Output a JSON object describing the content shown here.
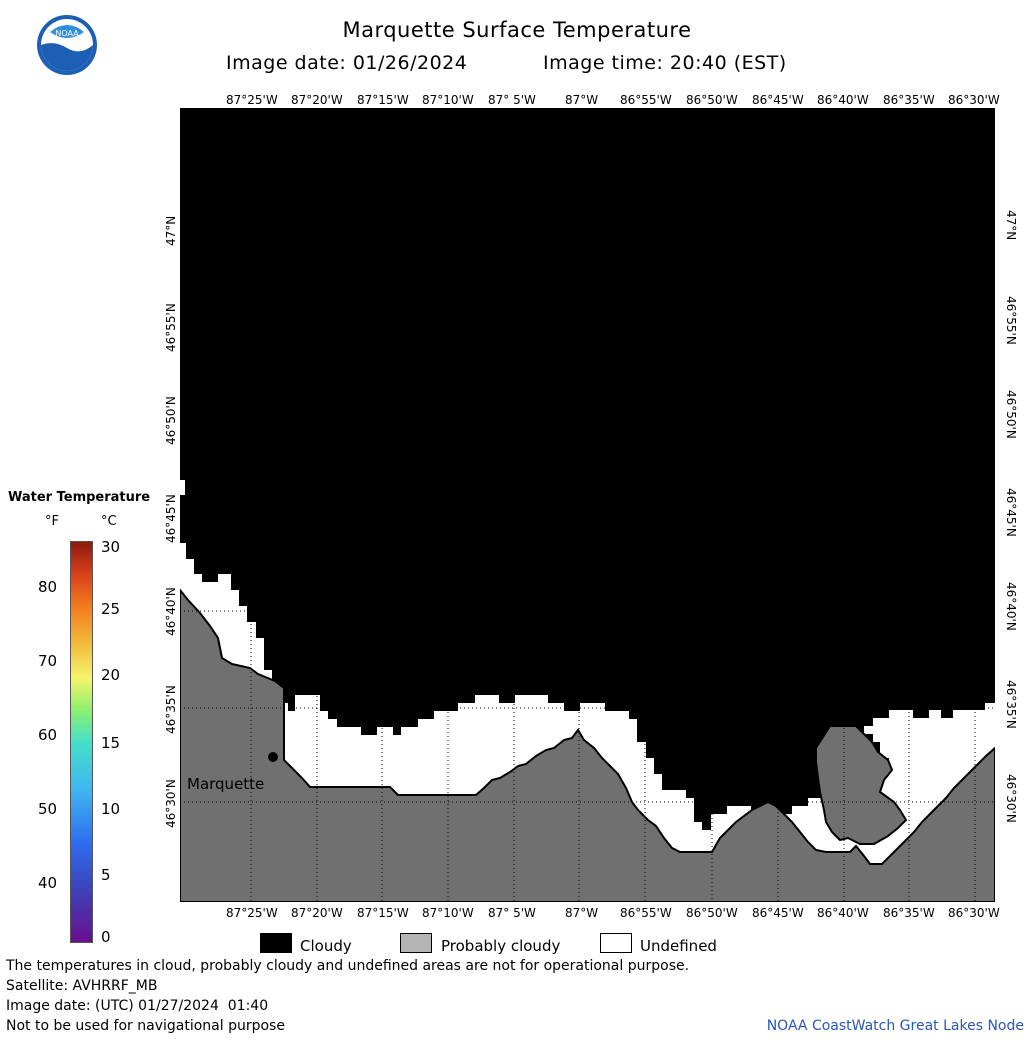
{
  "title": "Marquette Surface Temperature",
  "image_date_label": "Image date: 01/26/2024",
  "image_time_label": "Image time: 20:40 (EST)",
  "logo_text": "NOAA",
  "longitude_ticks": [
    "87°25'W",
    "87°20'W",
    "87°15'W",
    "87°10'W",
    "87° 5'W",
    "87°W",
    "86°55'W",
    "86°50'W",
    "86°45'W",
    "86°40'W",
    "86°35'W",
    "86°30'W"
  ],
  "latitude_ticks": [
    "47°N",
    "46°55'N",
    "46°50'N",
    "46°45'N",
    "46°40'N",
    "46°35'N",
    "46°30'N"
  ],
  "place_label": "Marquette",
  "legend": {
    "title": "Water Temperature",
    "unit_f": "°F",
    "unit_c": "°C",
    "fahrenheit_ticks": [
      "80",
      "70",
      "60",
      "50",
      "40"
    ],
    "celsius_ticks": [
      "30",
      "25",
      "20",
      "15",
      "10",
      "5",
      "0"
    ]
  },
  "categories": [
    {
      "label": "Cloudy",
      "color": "#000000"
    },
    {
      "label": "Probably cloudy",
      "color": "#b4b4b4"
    },
    {
      "label": "Undefined",
      "color": "#ffffff"
    }
  ],
  "colors": {
    "land": "#707070",
    "cloud": "#000000",
    "undefined": "#ffffff",
    "credit": "#2a58b8"
  },
  "notes": [
    "The temperatures in cloud, probably cloudy and undefined areas are not for operational purpose.",
    "Satellite: AVHRRF_MB",
    "Image date: (UTC) 01/27/2024  01:40",
    "Not to be used for navigational purpose"
  ],
  "credit": "NOAA CoastWatch Great Lakes Node"
}
